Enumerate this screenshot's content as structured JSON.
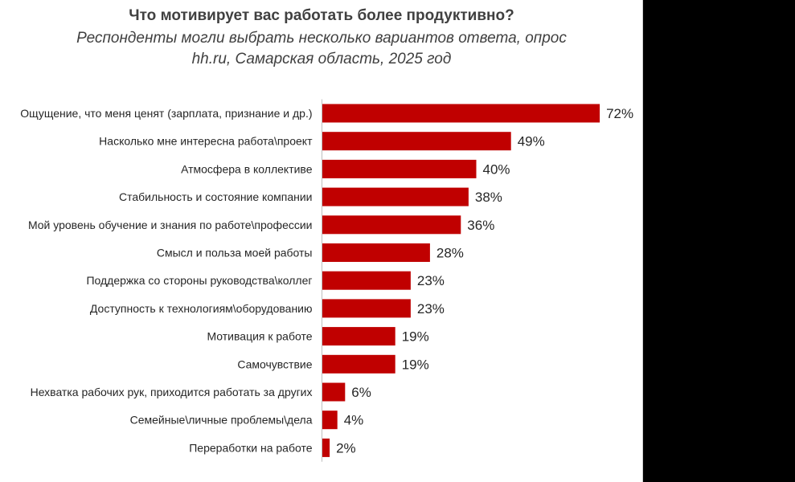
{
  "chart_data": {
    "type": "bar",
    "orientation": "horizontal",
    "title": "Что мотивирует вас работать более продуктивно?",
    "subtitle_lines": [
      "Респонденты могли выбрать несколько вариантов ответа, опрос",
      "hh.ru, Самарская область, 2025 год"
    ],
    "categories": [
      "Ощущение,  что меня ценят (зарплата,  признание и др.)",
      "Насколько мне интересна работа\\проект",
      "Атмосфера в коллективе",
      "Стабильность и состояние компании",
      "Мой уровень обучение и знания по работе\\профессии",
      "Смысл и польза моей работы",
      "Поддержка со стороны руководства\\коллег",
      "Доступность к технологиям\\оборудованию",
      "Мотивация  к работе",
      "Самочувствие",
      "Нехватка  рабочих рук, приходится  работать за других",
      "Семейные\\личные проблемы\\дела",
      "Переработки на работе"
    ],
    "values": [
      72,
      49,
      40,
      38,
      36,
      28,
      23,
      23,
      19,
      19,
      6,
      4,
      2
    ],
    "value_labels": [
      "72%",
      "49%",
      "40%",
      "38%",
      "36%",
      "28%",
      "23%",
      "23%",
      "19%",
      "19%",
      "6%",
      "4%",
      "2%"
    ],
    "xlim": [
      0,
      75
    ],
    "grid": false,
    "legend": "none",
    "bar_color": "#c00000"
  }
}
